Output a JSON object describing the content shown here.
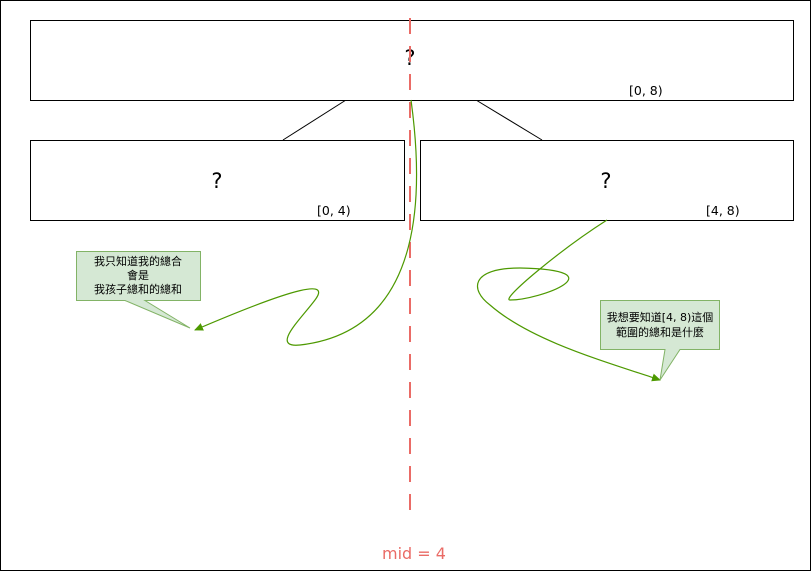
{
  "colors": {
    "node_stroke": "#000000",
    "midline": "#ea6b66",
    "arrow": "#4d9900",
    "callout_fill": "#d5e8d4",
    "callout_stroke": "#82b366"
  },
  "tree": {
    "root": {
      "value": "?",
      "range": "[0, 8)"
    },
    "left": {
      "value": "?",
      "range": "[0, 4)"
    },
    "right": {
      "value": "?",
      "range": "[4, 8)"
    }
  },
  "callouts": {
    "left_note": {
      "lines": [
        "我只知道我的總合",
        "會是",
        "我孩子總和的總和"
      ]
    },
    "right_note": {
      "lines": [
        "我想要知道[4, 8)這個",
        "範圍的總和是什麼"
      ]
    }
  },
  "midline": {
    "label": "mid = 4"
  }
}
